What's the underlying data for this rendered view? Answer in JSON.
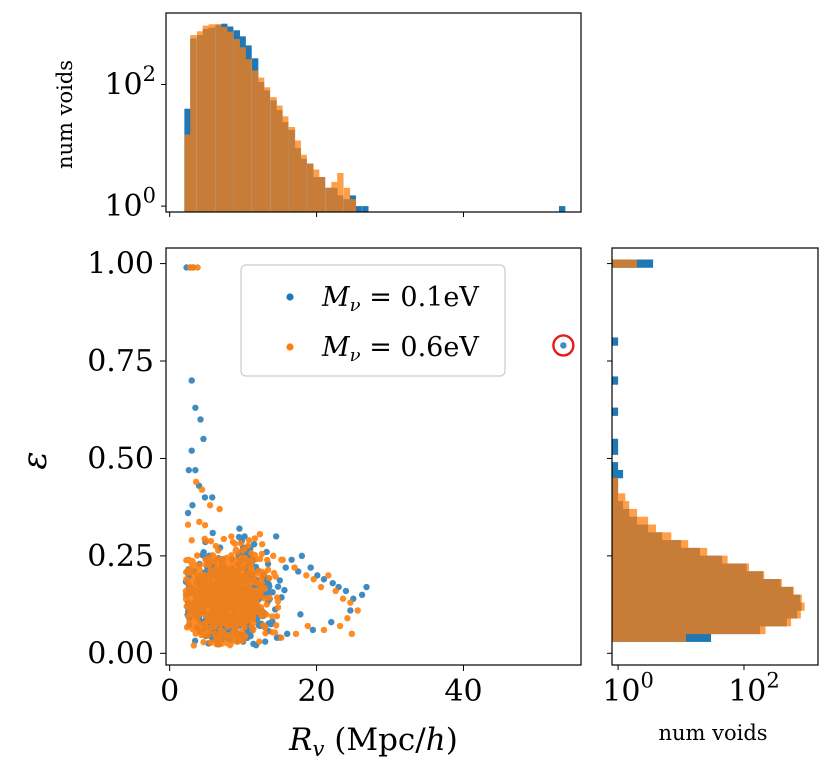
{
  "colors": {
    "blue": "#1f77b4",
    "orange": "#ff7f0e",
    "highlight": "#e41a1c"
  },
  "chart_data": [
    {
      "id": "top_hist",
      "type": "histogram",
      "title": "",
      "xlabel": "",
      "ylabel": "num voids",
      "yscale": "log",
      "xlim": [
        -0.5,
        56
      ],
      "ylim": [
        0.8,
        1500
      ],
      "xticks": [
        0,
        20,
        40
      ],
      "yticks": [
        {
          "value": 1,
          "base": "10",
          "exp": "0"
        },
        {
          "value": 100,
          "base": "10",
          "exp": "2"
        }
      ],
      "bin_width": 0.83,
      "series": [
        {
          "name": "M_nu = 0.1eV",
          "color": "blue",
          "bins": [
            [
              2.0,
              40
            ],
            [
              2.8,
              570
            ],
            [
              3.7,
              650
            ],
            [
              4.5,
              820
            ],
            [
              5.3,
              860
            ],
            [
              6.2,
              950
            ],
            [
              7.0,
              1000
            ],
            [
              7.8,
              900
            ],
            [
              8.7,
              780
            ],
            [
              9.5,
              620
            ],
            [
              10.3,
              440
            ],
            [
              11.2,
              270
            ],
            [
              12.0,
              110
            ],
            [
              12.8,
              80
            ],
            [
              13.7,
              55
            ],
            [
              14.5,
              38
            ],
            [
              15.3,
              24
            ],
            [
              16.2,
              18
            ],
            [
              17.0,
              9
            ],
            [
              17.8,
              6
            ],
            [
              18.7,
              5
            ],
            [
              19.5,
              3
            ],
            [
              20.3,
              3
            ],
            [
              21.2,
              2
            ],
            [
              22.0,
              2
            ],
            [
              22.8,
              1.5
            ],
            [
              23.7,
              1.3
            ],
            [
              24.5,
              1.5
            ],
            [
              25.3,
              1.0
            ],
            [
              26.2,
              1.0
            ],
            [
              53.0,
              1.0
            ]
          ]
        },
        {
          "name": "M_nu = 0.6eV",
          "color": "orange",
          "bins": [
            [
              2.0,
              15
            ],
            [
              2.8,
              650
            ],
            [
              3.7,
              750
            ],
            [
              4.5,
              930
            ],
            [
              5.3,
              980
            ],
            [
              6.2,
              990
            ],
            [
              7.0,
              880
            ],
            [
              7.8,
              740
            ],
            [
              8.7,
              560
            ],
            [
              9.5,
              410
            ],
            [
              10.3,
              260
            ],
            [
              11.2,
              170
            ],
            [
              12.0,
              130
            ],
            [
              12.8,
              90
            ],
            [
              13.7,
              62
            ],
            [
              14.5,
              45
            ],
            [
              15.3,
              30
            ],
            [
              16.2,
              20
            ],
            [
              17.0,
              12
            ],
            [
              17.8,
              7
            ],
            [
              18.7,
              5
            ],
            [
              19.5,
              4
            ],
            [
              20.3,
              3
            ],
            [
              21.2,
              2
            ],
            [
              22.0,
              2.5
            ],
            [
              22.8,
              3.5
            ],
            [
              23.7,
              2.0
            ],
            [
              24.5,
              1.3
            ]
          ]
        }
      ]
    },
    {
      "id": "scatter",
      "type": "scatter",
      "title": "",
      "xlabel": "R_v (Mpc/h)",
      "ylabel": "ε",
      "xlim": [
        -0.5,
        56
      ],
      "ylim": [
        -0.03,
        1.04
      ],
      "xticks": [
        {
          "value": 0,
          "label": "0"
        },
        {
          "value": 20,
          "label": "20"
        },
        {
          "value": 40,
          "label": "40"
        }
      ],
      "yticks": [
        {
          "value": 0.0,
          "label": "0.00"
        },
        {
          "value": 0.25,
          "label": "0.25"
        },
        {
          "value": 0.5,
          "label": "0.50"
        },
        {
          "value": 0.75,
          "label": "0.75"
        },
        {
          "value": 1.0,
          "label": "1.00"
        }
      ],
      "legend": {
        "placement": "top-center",
        "entries": [
          {
            "label": "M_ν = 0.1eV",
            "text": "Mν = 0.1eV",
            "color": "blue"
          },
          {
            "label": "M_ν = 0.6eV",
            "text": "Mν = 0.6eV",
            "color": "orange"
          }
        ]
      },
      "series": [
        {
          "name": "M_nu = 0.1eV",
          "color": "blue",
          "cloud": {
            "x_center": 8.0,
            "y_center": 0.14,
            "n": 650
          },
          "points": [
            [
              2.3,
              0.99
            ],
            [
              2.8,
              0.99
            ],
            [
              3.2,
              0.99
            ],
            [
              3.0,
              0.7
            ],
            [
              3.5,
              0.63
            ],
            [
              4.2,
              0.6
            ],
            [
              4.6,
              0.55
            ],
            [
              3.0,
              0.52
            ],
            [
              3.5,
              0.47
            ],
            [
              2.6,
              0.47
            ],
            [
              4.0,
              0.43
            ],
            [
              4.8,
              0.4
            ],
            [
              5.8,
              0.4
            ],
            [
              2.5,
              0.36
            ],
            [
              3.1,
              0.38
            ],
            [
              9.5,
              0.32
            ],
            [
              10.2,
              0.3
            ],
            [
              11.5,
              0.28
            ],
            [
              13.2,
              0.26
            ],
            [
              14.5,
              0.3
            ],
            [
              15.8,
              0.22
            ],
            [
              16.6,
              0.24
            ],
            [
              17.5,
              0.21
            ],
            [
              18.0,
              0.25
            ],
            [
              19.2,
              0.22
            ],
            [
              20.1,
              0.2
            ],
            [
              21.0,
              0.19
            ],
            [
              22.2,
              0.18
            ],
            [
              23.0,
              0.17
            ],
            [
              24.0,
              0.16
            ],
            [
              25.0,
              0.14
            ],
            [
              26.2,
              0.15
            ],
            [
              26.8,
              0.17
            ],
            [
              24.6,
              0.11
            ],
            [
              22.0,
              0.08
            ],
            [
              19.5,
              0.06
            ],
            [
              17.8,
              0.1
            ],
            [
              16.0,
              0.05
            ],
            [
              14.6,
              0.04
            ],
            [
              13.0,
              0.03
            ],
            [
              10.0,
              0.03
            ],
            [
              7.8,
              0.04
            ],
            [
              6.5,
              0.03
            ],
            [
              2.6,
              0.2
            ],
            [
              2.5,
              0.12
            ],
            [
              2.3,
              0.15
            ],
            [
              53.6,
              0.79
            ]
          ]
        },
        {
          "name": "M_nu = 0.6eV",
          "color": "orange",
          "cloud": {
            "x_center": 7.5,
            "y_center": 0.15,
            "n": 950
          },
          "points": [
            [
              3.2,
              0.99
            ],
            [
              3.8,
              0.99
            ],
            [
              2.8,
              0.99
            ],
            [
              3.6,
              0.44
            ],
            [
              4.4,
              0.42
            ],
            [
              5.5,
              0.38
            ],
            [
              6.8,
              0.37
            ],
            [
              2.5,
              0.33
            ],
            [
              3.0,
              0.29
            ],
            [
              2.6,
              0.24
            ],
            [
              8.4,
              0.3
            ],
            [
              10.8,
              0.29
            ],
            [
              12.6,
              0.28
            ],
            [
              14.1,
              0.25
            ],
            [
              15.4,
              0.24
            ],
            [
              17.0,
              0.22
            ],
            [
              18.6,
              0.2
            ],
            [
              19.6,
              0.19
            ],
            [
              20.6,
              0.17
            ],
            [
              21.6,
              0.2
            ],
            [
              22.6,
              0.16
            ],
            [
              23.6,
              0.14
            ],
            [
              24.6,
              0.13
            ],
            [
              25.6,
              0.11
            ],
            [
              24.2,
              0.09
            ],
            [
              23.2,
              0.07
            ],
            [
              21.0,
              0.06
            ],
            [
              18.8,
              0.07
            ],
            [
              17.2,
              0.05
            ],
            [
              24.8,
              0.05
            ],
            [
              15.2,
              0.04
            ],
            [
              12.2,
              0.03
            ],
            [
              9.2,
              0.03
            ],
            [
              6.2,
              0.05
            ],
            [
              4.8,
              0.06
            ],
            [
              3.2,
              0.11
            ],
            [
              2.7,
              0.08
            ]
          ]
        }
      ],
      "annotation": {
        "type": "circle",
        "x": 53.6,
        "y": 0.79,
        "color": "highlight"
      }
    },
    {
      "id": "right_hist",
      "type": "histogram",
      "orientation": "horizontal",
      "title": "",
      "xlabel": "num voids",
      "ylabel": "",
      "xscale": "log",
      "xlim": [
        0.8,
        1500
      ],
      "ylim": [
        -0.03,
        1.04
      ],
      "xticks": [
        {
          "value": 1,
          "base": "10",
          "exp": "0"
        },
        {
          "value": 100,
          "base": "10",
          "exp": "2"
        }
      ],
      "yticks": [
        0.0,
        0.25,
        0.5,
        0.75,
        1.0
      ],
      "bin_width": 0.0205,
      "series": [
        {
          "name": "M_nu = 0.1eV",
          "color": "blue",
          "bins": [
            [
              0.03,
              30
            ],
            [
              0.05,
              180
            ],
            [
              0.07,
              480
            ],
            [
              0.09,
              700
            ],
            [
              0.11,
              820
            ],
            [
              0.13,
              780
            ],
            [
              0.15,
              600
            ],
            [
              0.17,
              380
            ],
            [
              0.19,
              200
            ],
            [
              0.21,
              110
            ],
            [
              0.23,
              45
            ],
            [
              0.25,
              20
            ],
            [
              0.27,
              10
            ],
            [
              0.29,
              5
            ],
            [
              0.31,
              3
            ],
            [
              0.33,
              2
            ],
            [
              0.35,
              1.5
            ],
            [
              0.37,
              1.2
            ],
            [
              0.39,
              1.0
            ],
            [
              0.41,
              1.0
            ],
            [
              0.43,
              1.0
            ],
            [
              0.45,
              1.2
            ],
            [
              0.47,
              1.0
            ],
            [
              0.51,
              1.0
            ],
            [
              0.53,
              1.0
            ],
            [
              0.61,
              1.0
            ],
            [
              0.69,
              1.0
            ],
            [
              0.79,
              1.0
            ],
            [
              0.99,
              3.6
            ]
          ]
        },
        {
          "name": "M_nu = 0.6eV",
          "color": "orange",
          "bins": [
            [
              0.03,
              12
            ],
            [
              0.05,
              220
            ],
            [
              0.07,
              560
            ],
            [
              0.09,
              800
            ],
            [
              0.11,
              920
            ],
            [
              0.13,
              830
            ],
            [
              0.15,
              620
            ],
            [
              0.17,
              400
            ],
            [
              0.19,
              210
            ],
            [
              0.21,
              120
            ],
            [
              0.23,
              55
            ],
            [
              0.25,
              26
            ],
            [
              0.27,
              13
            ],
            [
              0.29,
              7
            ],
            [
              0.31,
              4
            ],
            [
              0.33,
              3
            ],
            [
              0.35,
              2
            ],
            [
              0.37,
              1.5
            ],
            [
              0.39,
              1.3
            ],
            [
              0.41,
              1.0
            ],
            [
              0.43,
              1.0
            ],
            [
              0.99,
              2.0
            ]
          ]
        }
      ]
    }
  ]
}
